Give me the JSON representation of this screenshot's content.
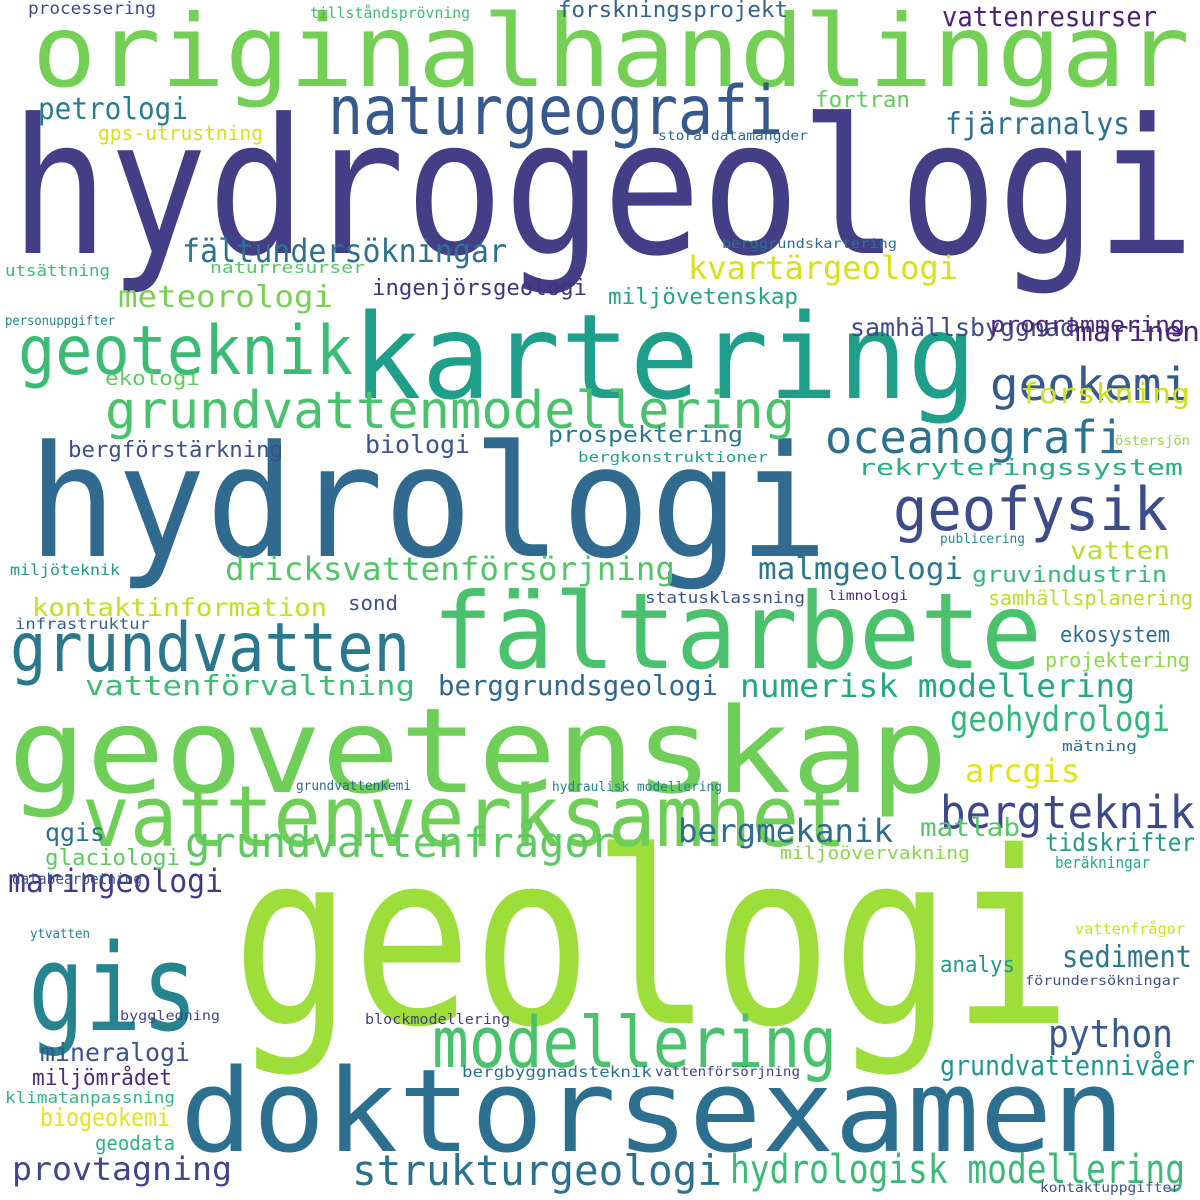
{
  "words": [
    {
      "text": "geologi",
      "color": "#9ede3a"
    },
    {
      "text": "hydrogeologi",
      "color": "#433e85"
    },
    {
      "text": "hydrologi",
      "color": "#306a8e"
    },
    {
      "text": "kartering",
      "color": "#1f9e89"
    },
    {
      "text": "geovetenskap",
      "color": "#6ece58"
    },
    {
      "text": "doktorsexamen",
      "color": "#2d6f8e"
    },
    {
      "text": "originalhandlingar",
      "color": "#74d055"
    },
    {
      "text": "fältarbete",
      "color": "#4ac16d"
    },
    {
      "text": "vattenverksamhet",
      "color": "#6ece58"
    },
    {
      "text": "gis",
      "color": "#25848e"
    },
    {
      "text": "modellering",
      "color": "#4ac16d"
    },
    {
      "text": "naturgeografi",
      "color": "#38598c"
    },
    {
      "text": "grundvatten",
      "color": "#2a788e"
    },
    {
      "text": "geoteknik",
      "color": "#3bbb75"
    },
    {
      "text": "grundvattenmodellering",
      "color": "#4ac16d"
    },
    {
      "text": "geofysik",
      "color": "#3e4c8a"
    },
    {
      "text": "strukturgeologi",
      "color": "#2c728e"
    },
    {
      "text": "hydrologisk modellering",
      "color": "#3aba76"
    },
    {
      "text": "grundvattenfrågor",
      "color": "#5ec962"
    },
    {
      "text": "oceanografi",
      "color": "#2c728e"
    },
    {
      "text": "geokemi",
      "color": "#38598c"
    },
    {
      "text": "bergteknik",
      "color": "#3e4989"
    },
    {
      "text": "dricksvattenförsörjning",
      "color": "#52c569"
    },
    {
      "text": "numerisk modellering",
      "color": "#26a784"
    },
    {
      "text": "berggrundsgeologi",
      "color": "#31688e"
    },
    {
      "text": "vattenförvaltning",
      "color": "#3dbc74"
    },
    {
      "text": "kvartärgeologi",
      "color": "#d5e21a"
    },
    {
      "text": "fältundersökningar",
      "color": "#2c718e"
    },
    {
      "text": "meteorologi",
      "color": "#7ad151"
    },
    {
      "text": "maringeologi",
      "color": "#443983"
    },
    {
      "text": "python",
      "color": "#365c8d"
    },
    {
      "text": "provtagning",
      "color": "#3f4889"
    },
    {
      "text": "malmgeologi",
      "color": "#2a788e"
    },
    {
      "text": "geohydrologi",
      "color": "#32b67a"
    },
    {
      "text": "bergmekanik",
      "color": "#2e6d8e"
    },
    {
      "text": "fjärranalys",
      "color": "#2d718e"
    },
    {
      "text": "vattenresurser",
      "color": "#482374"
    },
    {
      "text": "forskningsprojekt",
      "color": "#33638d"
    },
    {
      "text": "petrologi",
      "color": "#277f8e"
    },
    {
      "text": "fortran",
      "color": "#63cb5f"
    },
    {
      "text": "arcgis",
      "color": "#e2e418"
    },
    {
      "text": "forskning",
      "color": "#cde11d"
    },
    {
      "text": "samhällsbyggnad",
      "color": "#3e4a89"
    },
    {
      "text": "marinen",
      "color": "#482878"
    },
    {
      "text": "programmering",
      "color": "#482878"
    },
    {
      "text": "miljövetenskap",
      "color": "#21a685"
    },
    {
      "text": "ingenjörsgeologi",
      "color": "#46337f"
    },
    {
      "text": "prospektering",
      "color": "#2a788e"
    },
    {
      "text": "rekryteringssystem",
      "color": "#29af7f"
    },
    {
      "text": "biologi",
      "color": "#39568c"
    },
    {
      "text": "bergförstärkning",
      "color": "#3b528b"
    },
    {
      "text": "vatten",
      "color": "#b5de2b"
    },
    {
      "text": "gruvindustrin",
      "color": "#35b779"
    },
    {
      "text": "kontaktinformation",
      "color": "#c2df23"
    },
    {
      "text": "samhällsplanering",
      "color": "#b8de29"
    },
    {
      "text": "grundvattennivåer",
      "color": "#1f988b"
    },
    {
      "text": "mineralogi",
      "color": "#3b528b"
    },
    {
      "text": "sediment",
      "color": "#2a788e"
    },
    {
      "text": "matlab",
      "color": "#56c667"
    },
    {
      "text": "tidskrifter",
      "color": "#1f998a"
    },
    {
      "text": "qgis",
      "color": "#2c728e"
    },
    {
      "text": "glaciologi",
      "color": "#5ec962"
    },
    {
      "text": "analys",
      "color": "#1e9b8a"
    },
    {
      "text": "miljömrådet",
      "color": "#472d7b"
    },
    {
      "text": "biogeokemi",
      "color": "#e5e419"
    },
    {
      "text": "geodata",
      "color": "#2fb47c"
    },
    {
      "text": "ekosystem",
      "color": "#2d708e"
    },
    {
      "text": "projektering",
      "color": "#8bd646"
    },
    {
      "text": "ekologi",
      "color": "#63cb5f"
    },
    {
      "text": "sond",
      "color": "#3b518b"
    },
    {
      "text": "processering",
      "color": "#3e4a89"
    },
    {
      "text": "tillståndsprövning",
      "color": "#3fbc73"
    },
    {
      "text": "gps-utrustning",
      "color": "#d8e219"
    },
    {
      "text": "stora datamängder",
      "color": "#31688e"
    },
    {
      "text": "berggrundskartering",
      "color": "#2d708e"
    },
    {
      "text": "naturresurser",
      "color": "#56c667"
    },
    {
      "text": "utsättning",
      "color": "#3bbb75"
    },
    {
      "text": "personuppgifter",
      "color": "#26828e"
    },
    {
      "text": "östersjön",
      "color": "#8fd744"
    },
    {
      "text": "bergkonstruktioner",
      "color": "#20a386"
    },
    {
      "text": "publicering",
      "color": "#23898e"
    },
    {
      "text": "miljöteknik",
      "color": "#1f9a8a"
    },
    {
      "text": "statusklassning",
      "color": "#39558c"
    },
    {
      "text": "limnologi",
      "color": "#472c7a"
    },
    {
      "text": "infrastruktur",
      "color": "#33638d"
    },
    {
      "text": "mätning",
      "color": "#2d708e"
    },
    {
      "text": "grundvattenkemi",
      "color": "#31668e"
    },
    {
      "text": "hydraulisk modellering",
      "color": "#26828e"
    },
    {
      "text": "miljöövervakning",
      "color": "#8bd646"
    },
    {
      "text": "databearbetning",
      "color": "#39568c"
    },
    {
      "text": "beräkningar",
      "color": "#22a884"
    },
    {
      "text": "vattenfrågor",
      "color": "#d0e11c"
    },
    {
      "text": "ytvatten",
      "color": "#26828e"
    },
    {
      "text": "förundersökningar",
      "color": "#3b528b"
    },
    {
      "text": "byggledning",
      "color": "#3f4788"
    },
    {
      "text": "blockmodellering",
      "color": "#423f85"
    },
    {
      "text": "bergbyggnadsteknik",
      "color": "#2c718e"
    },
    {
      "text": "vattenförsörjning",
      "color": "#414287"
    },
    {
      "text": "klimatanpassning",
      "color": "#33b67a"
    },
    {
      "text": "kontaktuppgifter",
      "color": "#3b528b"
    }
  ]
}
